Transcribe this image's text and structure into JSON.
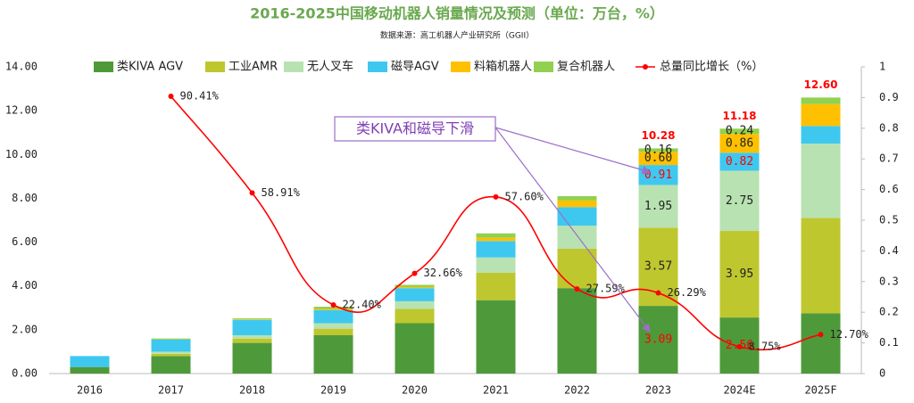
{
  "chart_data": {
    "type": "bar",
    "stacked": true,
    "title": "2016-2025中国移动机器人销量情况及预测（单位：万台，%）",
    "subtitle": "数据来源：高工机器人产业研究所（GGII）",
    "annotation": "类KIVA和磁导下滑",
    "categories": [
      "2016",
      "2017",
      "2018",
      "2019",
      "2020",
      "2021",
      "2022",
      "2023",
      "2024E",
      "2025F"
    ],
    "ylim": [
      0,
      14
    ],
    "yticks": [
      {
        "value": 0,
        "label": "0.00"
      },
      {
        "value": 2,
        "label": "2.00"
      },
      {
        "value": 4,
        "label": "4.00"
      },
      {
        "value": 6,
        "label": "6.00"
      },
      {
        "value": 8,
        "label": "8.00"
      },
      {
        "value": 10,
        "label": "10.00"
      },
      {
        "value": 12,
        "label": "12.00"
      },
      {
        "value": 14,
        "label": "14.00"
      }
    ],
    "y2lim": [
      0,
      1
    ],
    "y2ticks": [
      0,
      0.1,
      0.2,
      0.3,
      0.4,
      0.5,
      0.6,
      0.7,
      0.8,
      0.9,
      1
    ],
    "series": [
      {
        "name": "类KIVA AGV",
        "color": "#4e9a3a",
        "label_color": "#ff0000",
        "values": [
          0.3,
          0.8,
          1.4,
          1.75,
          2.3,
          3.35,
          3.9,
          3.09,
          2.56,
          2.75
        ],
        "value_labels": [
          null,
          null,
          null,
          null,
          null,
          null,
          null,
          "3.09",
          "2.56",
          null
        ]
      },
      {
        "name": "工业AMR",
        "color": "#bfc72f",
        "label_color": "#222222",
        "values": [
          0,
          0.1,
          0.2,
          0.3,
          0.65,
          1.25,
          1.8,
          3.57,
          3.95,
          4.35
        ],
        "value_labels": [
          null,
          null,
          null,
          null,
          null,
          null,
          null,
          "3.57",
          "3.95",
          null
        ]
      },
      {
        "name": "无人叉车",
        "color": "#b8e2b2",
        "label_color": "#222222",
        "values": [
          0,
          0.1,
          0.15,
          0.25,
          0.35,
          0.7,
          1.05,
          1.95,
          2.75,
          3.4
        ],
        "value_labels": [
          null,
          null,
          null,
          null,
          null,
          null,
          null,
          "1.95",
          "2.75",
          null
        ]
      },
      {
        "name": "磁导AGV",
        "color": "#3ec8f0",
        "label_color": "#ff0000",
        "values": [
          0.5,
          0.55,
          0.7,
          0.6,
          0.6,
          0.75,
          0.85,
          0.91,
          0.82,
          0.8
        ],
        "value_labels": [
          null,
          null,
          null,
          null,
          null,
          null,
          null,
          "0.91",
          "0.82",
          null
        ]
      },
      {
        "name": "料箱机器人",
        "color": "#ffc000",
        "label_color": "#222222",
        "values": [
          0,
          0,
          0.02,
          0.05,
          0.05,
          0.15,
          0.3,
          0.6,
          0.86,
          1.0
        ],
        "value_labels": [
          null,
          null,
          null,
          null,
          null,
          null,
          null,
          "0.60",
          "0.86",
          null
        ]
      },
      {
        "name": "复合机器人",
        "color": "#92d050",
        "label_color": "#222222",
        "values": [
          0,
          0.05,
          0.05,
          0.1,
          0.1,
          0.2,
          0.2,
          0.16,
          0.24,
          0.3
        ],
        "value_labels": [
          null,
          null,
          null,
          null,
          null,
          null,
          null,
          "0.16",
          "0.24",
          null
        ]
      },
      {
        "name": "总量同比增长（%）",
        "type": "line",
        "axis": "y2",
        "color": "#ff0000",
        "values": [
          null,
          0.9041,
          0.5891,
          0.224,
          0.3266,
          0.576,
          0.2759,
          0.2629,
          0.0875,
          0.127
        ],
        "value_labels": [
          null,
          "90.41%",
          "58.91%",
          "22.40%",
          "32.66%",
          "57.60%",
          "27.59%",
          "26.29%",
          "8.75%",
          "12.70%"
        ]
      }
    ],
    "totals": [
      null,
      null,
      null,
      null,
      null,
      null,
      null,
      10.28,
      11.18,
      12.6
    ],
    "total_labels": [
      null,
      null,
      null,
      null,
      null,
      null,
      null,
      "10.28",
      "11.18",
      "12.60"
    ]
  }
}
